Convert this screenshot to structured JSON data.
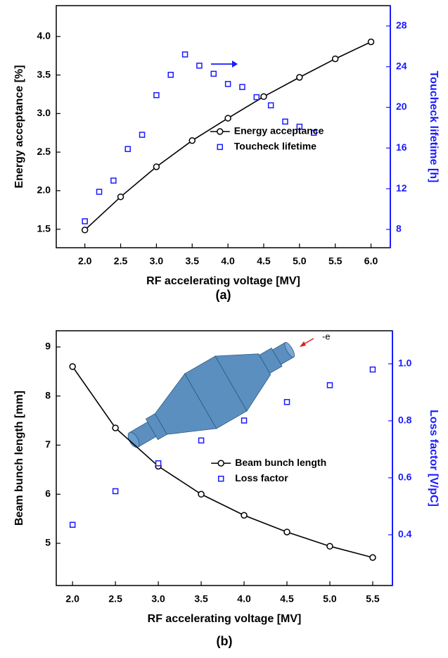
{
  "chart_data": [
    {
      "type": "line",
      "caption": "(a)",
      "xlabel": "RF accelerating voltage [MV]",
      "ylabel": "Energy acceptance [%]",
      "y2label": "Toucheck lifetime [h]",
      "xlim": [
        1.6,
        6.27
      ],
      "xticks": [
        {
          "value": 2,
          "label": "2.0"
        },
        2.5,
        {
          "value": 3,
          "label": "3.0"
        },
        3.5,
        {
          "value": 4,
          "label": "4.0"
        },
        4.5,
        {
          "value": 5,
          "label": "5.0"
        },
        5.5,
        {
          "value": 6,
          "label": "6.0"
        }
      ],
      "ylim": [
        1.26,
        4.4
      ],
      "yticks": [
        1.5,
        {
          "value": 2,
          "label": "2.0"
        },
        2.5,
        {
          "value": 3,
          "label": "3.0"
        },
        3.5,
        {
          "value": 4,
          "label": "4.0"
        }
      ],
      "y2lim": [
        6.2,
        30
      ],
      "y2ticks": [
        8,
        12,
        16,
        20,
        24,
        28
      ],
      "legend": "center",
      "y2color": "#1a1aff",
      "series": [
        {
          "name": "Energy acceptance",
          "type": "line",
          "color": "#000000",
          "x": [
            2,
            2.5,
            3,
            3.5,
            4,
            4.5,
            5,
            5.5,
            6
          ],
          "values": [
            1.49,
            1.92,
            2.31,
            2.65,
            2.94,
            3.22,
            3.47,
            3.71,
            3.93
          ]
        },
        {
          "name": "Toucheck lifetime",
          "type": "scatter",
          "axis": "y2",
          "color": "#1a1aff",
          "x": [
            2,
            2.2,
            2.4,
            2.6,
            2.8,
            3,
            3.2,
            3.4,
            3.6,
            3.8,
            4,
            4.2,
            4.4,
            4.6,
            4.8,
            5,
            5.2
          ],
          "values": [
            8.8,
            11.7,
            12.8,
            15.9,
            17.3,
            21.2,
            23.2,
            25.2,
            24.1,
            23.3,
            22.3,
            22.0,
            21.0,
            20.2,
            18.6,
            18.1,
            17.5
          ]
        }
      ]
    },
    {
      "type": "line",
      "caption": "(b)",
      "annotation": "-e",
      "xlabel": "RF accelerating voltage [MV]",
      "ylabel": "Beam bunch length [mm]",
      "y2label": "Loss factor [V/pC]",
      "xlim": [
        1.81,
        5.73
      ],
      "xticks": [
        {
          "value": 2,
          "label": "2.0"
        },
        2.5,
        {
          "value": 3,
          "label": "3.0"
        },
        3.5,
        {
          "value": 4,
          "label": "4.0"
        },
        4.5,
        {
          "value": 5,
          "label": "5.0"
        },
        5.5
      ],
      "ylim": [
        4.14,
        9.33
      ],
      "yticks": [
        5,
        6,
        7,
        8,
        9
      ],
      "y2lim": [
        0.222,
        1.116
      ],
      "y2ticks": [
        0.4,
        0.6,
        0.8,
        {
          "value": 1,
          "label": "1.0"
        }
      ],
      "legend": "center",
      "y2color": "#1a1aff",
      "series": [
        {
          "name": "Beam bunch length",
          "type": "line",
          "color": "#000000",
          "x": [
            2,
            2.5,
            3,
            3.5,
            4,
            4.5,
            5,
            5.5
          ],
          "values": [
            8.6,
            7.35,
            6.57,
            6.0,
            5.57,
            5.23,
            4.94,
            4.71
          ]
        },
        {
          "name": "Loss factor",
          "type": "scatter",
          "axis": "y2",
          "color": "#1a1aff",
          "x": [
            2,
            2.5,
            3,
            3.5,
            4,
            4.5,
            5,
            5.5
          ],
          "values": [
            0.435,
            0.553,
            0.651,
            0.731,
            0.801,
            0.866,
            0.925,
            0.98
          ]
        }
      ]
    }
  ]
}
